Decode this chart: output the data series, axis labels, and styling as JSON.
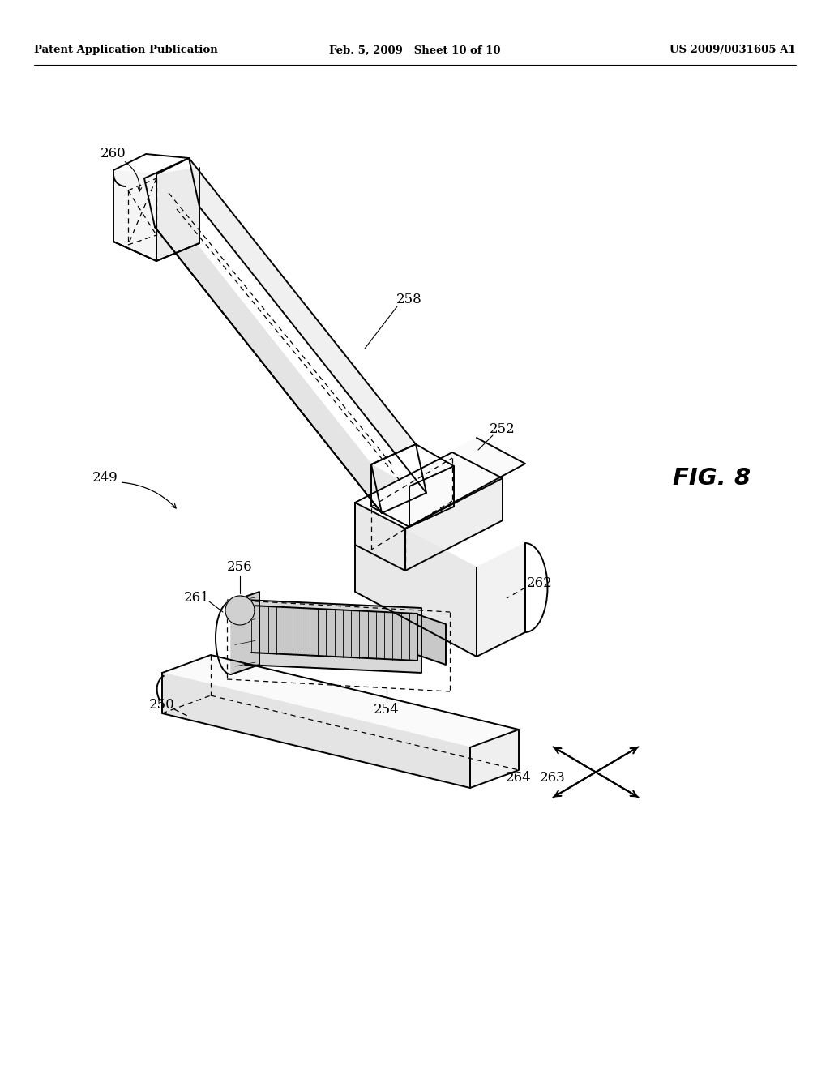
{
  "header_left": "Patent Application Publication",
  "header_mid": "Feb. 5, 2009   Sheet 10 of 10",
  "header_right": "US 2009/0031605 A1",
  "fig_label": "FIG. 8",
  "bg_color": "#ffffff",
  "line_color": "#000000"
}
